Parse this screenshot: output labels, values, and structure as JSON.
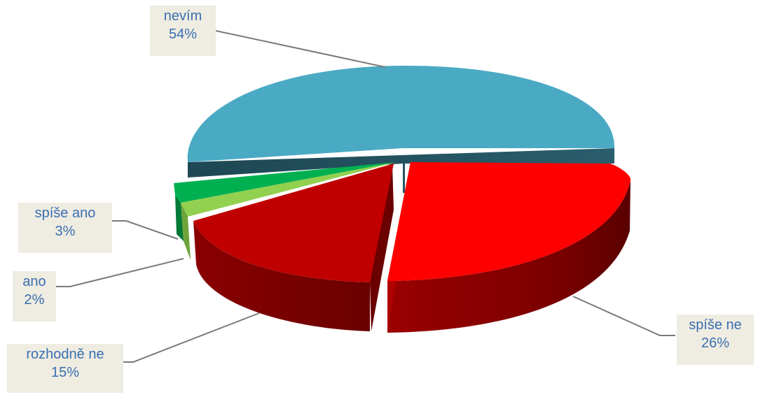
{
  "chart_data": {
    "type": "pie",
    "title": "",
    "slices": [
      {
        "name": "nevím",
        "value": 54,
        "label": "54%",
        "color": "#4aaac4"
      },
      {
        "name": "spíše ne",
        "value": 26,
        "label": "26%",
        "color": "#ff0000"
      },
      {
        "name": "rozhodně ne",
        "value": 15,
        "label": "15%",
        "color": "#c00000"
      },
      {
        "name": "ano",
        "value": 2,
        "label": "2%",
        "color": "#92d050"
      },
      {
        "name": "spíše ano",
        "value": 3,
        "label": "3%",
        "color": "#00b050"
      }
    ],
    "legend": "none",
    "label_style": "boxed-callouts"
  }
}
